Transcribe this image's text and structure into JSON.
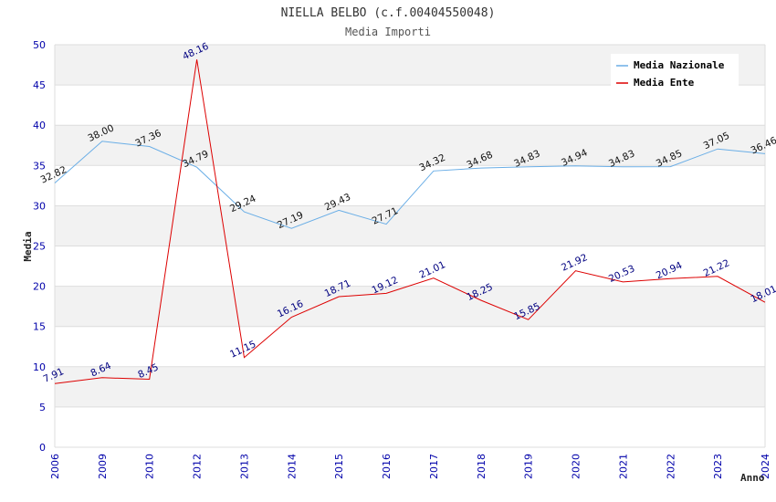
{
  "chart_data": {
    "type": "line",
    "title": "NIELLA BELBO (c.f.00404550048)",
    "subtitle": "Media Importi",
    "xlabel": "Anno",
    "ylabel": "Media",
    "ylim": [
      0,
      50
    ],
    "yticks": [
      "0",
      "5",
      "10",
      "15",
      "20",
      "25",
      "30",
      "35",
      "40",
      "45",
      "50"
    ],
    "categories": [
      "2006",
      "2009",
      "2010",
      "2012",
      "2013",
      "2014",
      "2015",
      "2016",
      "2017",
      "2018",
      "2019",
      "2020",
      "2021",
      "2022",
      "2023",
      "2024"
    ],
    "legend_position": "top-right",
    "series": [
      {
        "name": "Media Nazionale",
        "color": "#6aaee6",
        "values": [
          32.82,
          38.0,
          37.36,
          34.79,
          29.24,
          27.19,
          29.43,
          27.71,
          34.32,
          34.68,
          34.83,
          34.94,
          34.83,
          34.85,
          37.05,
          36.46
        ],
        "labels": [
          "32.82",
          "38.00",
          "37.36",
          "34.79",
          "29.24",
          "27.19",
          "29.43",
          "27.71",
          "34.32",
          "34.68",
          "34.83",
          "34.94",
          "34.83",
          "34.85",
          "37.05",
          "36.46"
        ]
      },
      {
        "name": "Media Ente",
        "color": "#dd0000",
        "values": [
          7.91,
          8.64,
          8.45,
          48.16,
          11.15,
          16.16,
          18.71,
          19.12,
          21.01,
          18.25,
          15.85,
          21.92,
          20.53,
          20.94,
          21.22,
          18.01
        ],
        "labels": [
          "7.91",
          "8.64",
          "8.45",
          "48.16",
          "11.15",
          "16.16",
          "18.71",
          "19.12",
          "21.01",
          "18.25",
          "15.85",
          "21.92",
          "20.53",
          "20.94",
          "21.22",
          "18.01"
        ]
      }
    ]
  }
}
